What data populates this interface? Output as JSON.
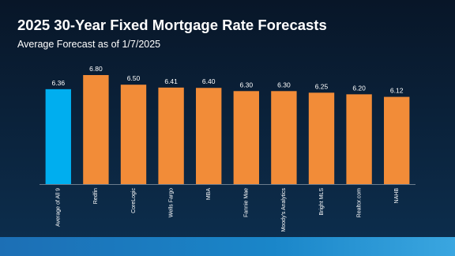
{
  "chart_data": {
    "type": "bar",
    "title": "2025 30-Year Fixed Mortgage Rate Forecasts",
    "subtitle": "Average Forecast as of 1/7/2025",
    "categories": [
      "Average of All 9",
      "Redfin",
      "CoreLogic",
      "Wells Fargo",
      "MBA",
      "Fannie Mae",
      "Moody's Analytics",
      "Bright MLS",
      "Realtor.com",
      "NAHB"
    ],
    "values": [
      6.36,
      6.8,
      6.5,
      6.41,
      6.4,
      6.3,
      6.3,
      6.25,
      6.2,
      6.12
    ],
    "value_labels": [
      "6.36",
      "6.80",
      "6.50",
      "6.41",
      "6.40",
      "6.30",
      "6.30",
      "6.25",
      "6.20",
      "6.12"
    ],
    "colors": [
      "#00aeef",
      "#f28c38",
      "#f28c38",
      "#f28c38",
      "#f28c38",
      "#f28c38",
      "#f28c38",
      "#f28c38",
      "#f28c38",
      "#f28c38"
    ],
    "ylim": [
      3.4,
      6.8
    ]
  }
}
